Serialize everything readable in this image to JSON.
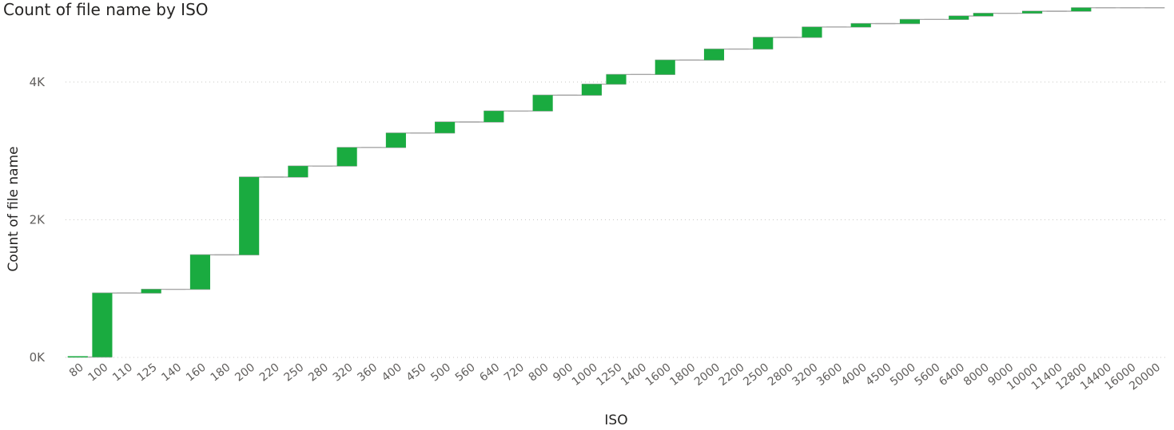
{
  "chart_data": {
    "type": "waterfall",
    "title": "Count of file name by ISO",
    "xlabel": "ISO",
    "ylabel": "Count of file name",
    "ylim": [
      0,
      5100
    ],
    "yticks": [
      0,
      2000,
      4000
    ],
    "ytick_labels": [
      "0K",
      "2K",
      "4K"
    ],
    "grid": true,
    "increase_color": "#1AAB40",
    "connector_color": "#A6A6A6",
    "categories": [
      "80",
      "100",
      "110",
      "125",
      "140",
      "160",
      "180",
      "200",
      "220",
      "250",
      "280",
      "320",
      "360",
      "400",
      "450",
      "500",
      "560",
      "640",
      "720",
      "800",
      "900",
      "1000",
      "1250",
      "1400",
      "1600",
      "1800",
      "2000",
      "2200",
      "2500",
      "2800",
      "3200",
      "3600",
      "4000",
      "4500",
      "5000",
      "5600",
      "6400",
      "8000",
      "9000",
      "10000",
      "11400",
      "12800",
      "14400",
      "16000",
      "20000"
    ],
    "values": [
      5,
      930,
      0,
      55,
      0,
      500,
      0,
      1130,
      0,
      160,
      0,
      270,
      0,
      210,
      0,
      160,
      0,
      160,
      0,
      230,
      0,
      160,
      140,
      0,
      210,
      0,
      160,
      0,
      170,
      0,
      150,
      0,
      50,
      0,
      60,
      0,
      50,
      40,
      0,
      30,
      0,
      50,
      0,
      0,
      0
    ]
  }
}
